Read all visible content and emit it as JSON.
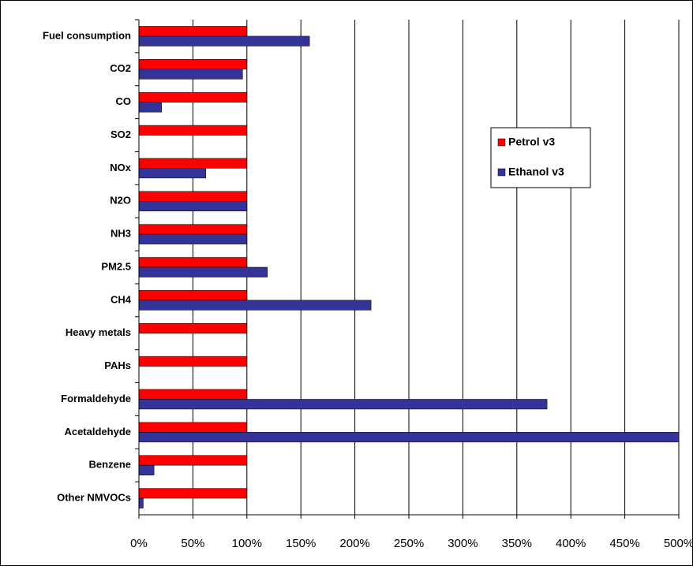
{
  "chart_data": {
    "type": "hbar",
    "categories": [
      "Fuel consumption",
      "CO2",
      "CO",
      "SO2",
      "NOx",
      "N2O",
      "NH3",
      "PM2.5",
      "CH4",
      "Heavy metals",
      "PAHs",
      "Formaldehyde",
      "Acetaldehyde",
      "Benzene",
      "Other NMVOCs"
    ],
    "series": [
      {
        "name": "Petrol v3",
        "color": "#ff0000",
        "values": [
          100,
          100,
          100,
          100,
          100,
          100,
          100,
          100,
          100,
          100,
          100,
          100,
          100,
          100,
          100
        ]
      },
      {
        "name": "Ethanol v3",
        "color": "#333399",
        "values": [
          158,
          96,
          21,
          0,
          62,
          100,
          100,
          119,
          215,
          0,
          0,
          378,
          500,
          14,
          4
        ]
      }
    ],
    "xlim": [
      0,
      500
    ],
    "xticks": [
      {
        "value": 0,
        "label": "0%"
      },
      {
        "value": 50,
        "label": "50%"
      },
      {
        "value": 100,
        "label": "100%"
      },
      {
        "value": 150,
        "label": "150%"
      },
      {
        "value": 200,
        "label": "200%"
      },
      {
        "value": 250,
        "label": "250%"
      },
      {
        "value": 300,
        "label": "300%"
      },
      {
        "value": 350,
        "label": "350%"
      },
      {
        "value": 400,
        "label": "400%"
      },
      {
        "value": 450,
        "label": "450%"
      },
      {
        "value": 500,
        "label": "500%"
      }
    ],
    "grid": true,
    "legend": "right"
  }
}
